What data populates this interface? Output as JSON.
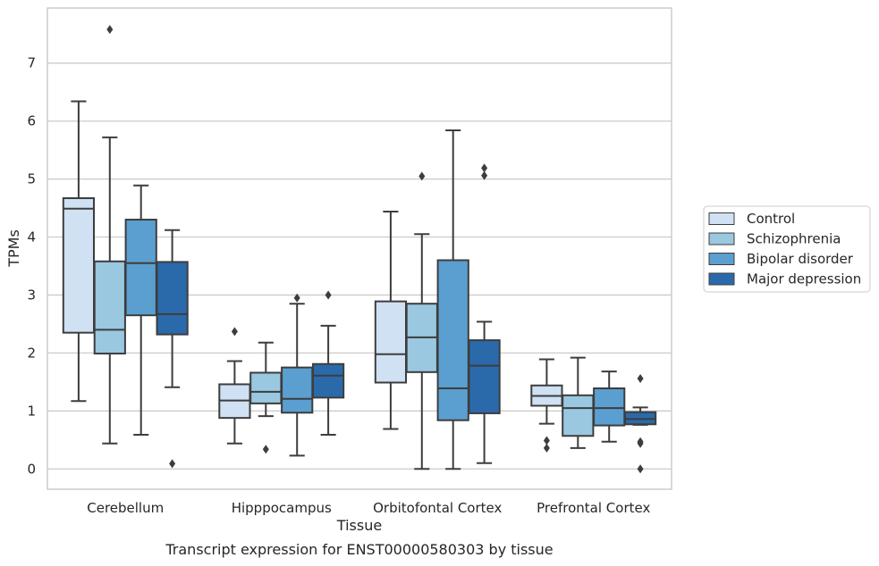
{
  "chart_data": {
    "type": "box",
    "title": "",
    "caption": "Transcript expression for ENST00000580303 by tissue",
    "xlabel": "Tissue",
    "ylabel": "TPMs",
    "ylim": [
      -0.35,
      7.95
    ],
    "yticks": [
      0,
      1,
      2,
      3,
      4,
      5,
      6,
      7
    ],
    "grid": "horizontal",
    "legend_position": "right",
    "categories": [
      "Cerebellum",
      "Hipppocampus",
      "Orbitofontal Cortex",
      "Prefrontal Cortex"
    ],
    "series": [
      {
        "name": "Control",
        "color": "#cfe1f2",
        "boxes": [
          {
            "whislo": 1.17,
            "q1": 2.35,
            "med": 4.49,
            "q3": 4.67,
            "whishi": 6.34,
            "fliers": []
          },
          {
            "whislo": 0.44,
            "q1": 0.88,
            "med": 1.18,
            "q3": 1.46,
            "whishi": 1.86,
            "fliers": [
              2.37
            ]
          },
          {
            "whislo": 0.69,
            "q1": 1.49,
            "med": 1.98,
            "q3": 2.89,
            "whishi": 4.44,
            "fliers": []
          },
          {
            "whislo": 0.78,
            "q1": 1.09,
            "med": 1.26,
            "q3": 1.44,
            "whishi": 1.89,
            "fliers": [
              0.49,
              0.36
            ]
          }
        ]
      },
      {
        "name": "Schizophrenia",
        "color": "#9ac8e0",
        "boxes": [
          {
            "whislo": 0.44,
            "q1": 1.99,
            "med": 2.4,
            "q3": 3.58,
            "whishi": 5.72,
            "fliers": [
              7.58
            ]
          },
          {
            "whislo": 0.91,
            "q1": 1.13,
            "med": 1.33,
            "q3": 1.66,
            "whishi": 2.18,
            "fliers": [
              0.34
            ]
          },
          {
            "whislo": 0.0,
            "q1": 1.67,
            "med": 2.27,
            "q3": 2.85,
            "whishi": 4.05,
            "fliers": [
              5.05
            ]
          },
          {
            "whislo": 0.36,
            "q1": 0.57,
            "med": 1.05,
            "q3": 1.27,
            "whishi": 1.92,
            "fliers": []
          }
        ]
      },
      {
        "name": "Bipolar disorder",
        "color": "#5a9fcf",
        "boxes": [
          {
            "whislo": 0.59,
            "q1": 2.65,
            "med": 3.55,
            "q3": 4.3,
            "whishi": 4.89,
            "fliers": []
          },
          {
            "whislo": 0.23,
            "q1": 0.97,
            "med": 1.21,
            "q3": 1.75,
            "whishi": 2.85,
            "fliers": [
              2.95
            ]
          },
          {
            "whislo": 0.0,
            "q1": 0.84,
            "med": 1.39,
            "q3": 3.6,
            "whishi": 5.84,
            "fliers": []
          },
          {
            "whislo": 0.47,
            "q1": 0.75,
            "med": 1.05,
            "q3": 1.39,
            "whishi": 1.68,
            "fliers": []
          }
        ]
      },
      {
        "name": "Major depression",
        "color": "#2a6aab",
        "boxes": [
          {
            "whislo": 1.41,
            "q1": 2.32,
            "med": 2.67,
            "q3": 3.57,
            "whishi": 4.12,
            "fliers": [
              0.09
            ]
          },
          {
            "whislo": 0.59,
            "q1": 1.23,
            "med": 1.61,
            "q3": 1.81,
            "whishi": 2.47,
            "fliers": [
              3.0
            ]
          },
          {
            "whislo": 0.1,
            "q1": 0.96,
            "med": 1.78,
            "q3": 2.22,
            "whishi": 2.54,
            "fliers": [
              5.19,
              5.06
            ]
          },
          {
            "whislo": 0.76,
            "q1": 0.77,
            "med": 0.86,
            "q3": 0.98,
            "whishi": 1.06,
            "fliers": [
              1.56,
              0.47,
              0.44,
              0.0
            ]
          }
        ]
      }
    ]
  }
}
